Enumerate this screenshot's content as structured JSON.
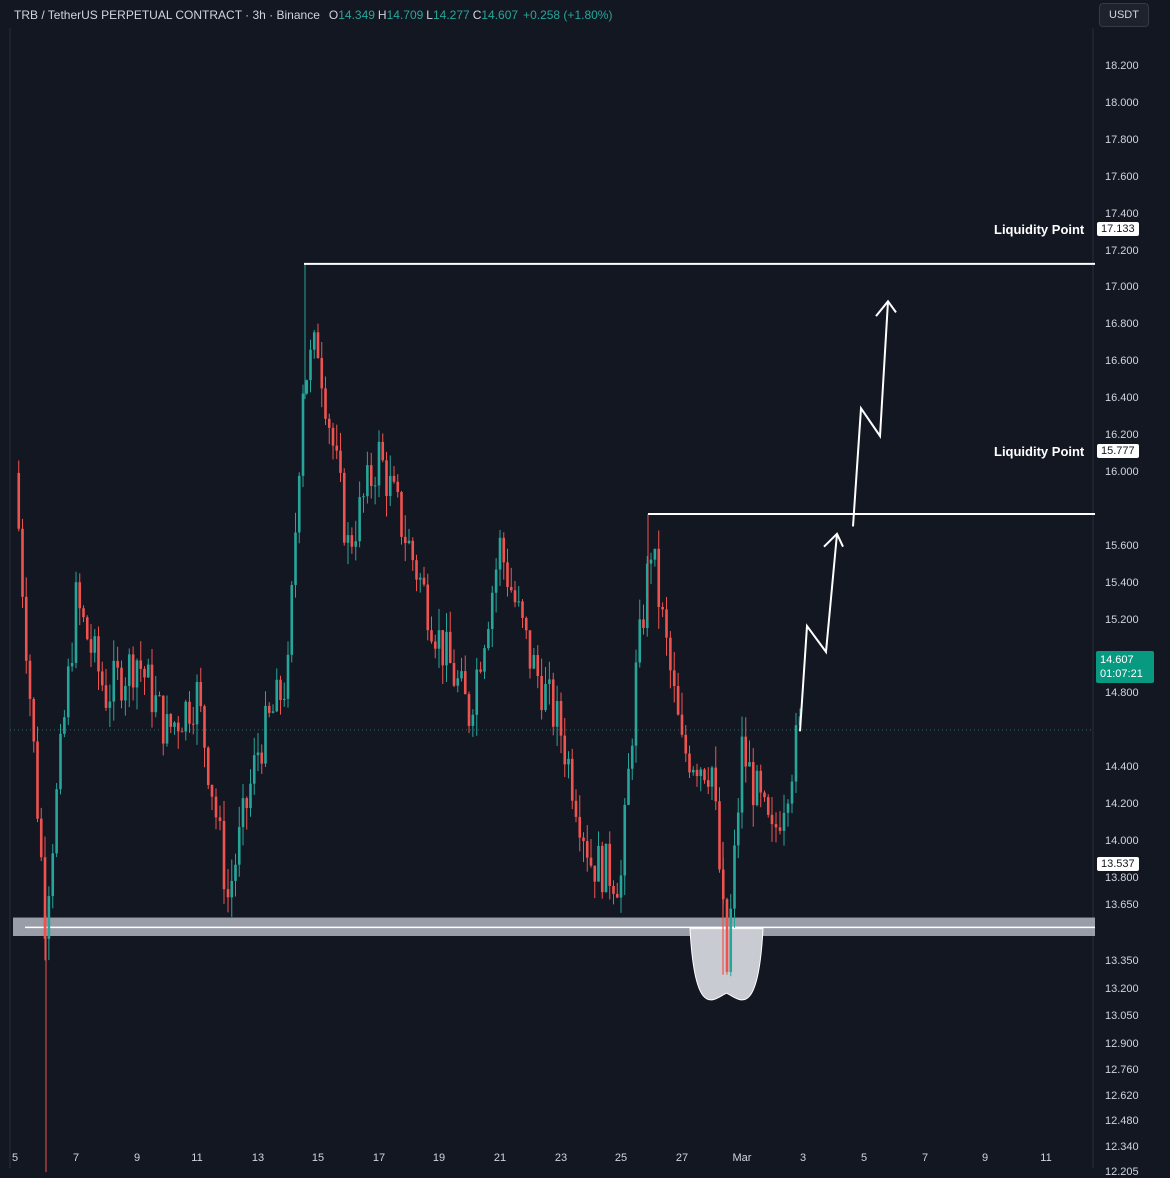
{
  "header": {
    "symbol": "TRB / TetherUS PERPETUAL CONTRACT · 3h · Binance",
    "o_label": "O",
    "o_value": "14.349",
    "h_label": "H",
    "h_value": "14.709",
    "l_label": "L",
    "l_value": "14.277",
    "c_label": "C",
    "c_value": "14.607",
    "change": "+0.258 (+1.80%)"
  },
  "currency_button": "USDT",
  "price_axis": [
    "18.200",
    "18.000",
    "17.800",
    "17.600",
    "17.400",
    "17.200",
    "17.000",
    "16.800",
    "16.600",
    "16.400",
    "16.200",
    "16.000",
    "15.600",
    "15.400",
    "15.200",
    "15.000",
    "14.800",
    "14.400",
    "14.200",
    "14.000",
    "13.800",
    "13.650",
    "13.350",
    "13.200",
    "13.050",
    "12.900",
    "12.760",
    "12.620",
    "12.480",
    "12.340",
    "12.205"
  ],
  "date_axis": [
    "5",
    "7",
    "9",
    "11",
    "13",
    "15",
    "17",
    "19",
    "21",
    "23",
    "25",
    "27",
    "Mar",
    "3",
    "5",
    "7",
    "9",
    "11"
  ],
  "annotations": {
    "liquidity_upper_label": "Liquidity Point",
    "liquidity_upper_price": "17.133",
    "liquidity_lower_label": "Liquidity Point",
    "liquidity_lower_price": "15.777",
    "support_price": "13.537"
  },
  "last_price": {
    "price": "14.607",
    "countdown": "01:07:21"
  },
  "colors": {
    "background": "#131722",
    "up": "#26a69a",
    "down": "#ef5350",
    "annotation": "#ffffff",
    "support_zone": "#b2b5be"
  },
  "chart_data": {
    "type": "candlestick",
    "title": "TRB / TetherUS PERPETUAL CONTRACT · 3h · Binance",
    "x_ticks": [
      "5",
      "7",
      "9",
      "11",
      "13",
      "15",
      "17",
      "19",
      "21",
      "23",
      "25",
      "27",
      "Mar",
      "3",
      "5",
      "7",
      "9",
      "11"
    ],
    "y_range": [
      12.205,
      18.35
    ],
    "close_path": [
      [
        "5",
        16.0
      ],
      [
        "6",
        13.6
      ],
      [
        "7",
        15.3
      ],
      [
        "8",
        14.8
      ],
      [
        "9",
        15.0
      ],
      [
        "10",
        14.6
      ],
      [
        "11",
        14.8
      ],
      [
        "11.5",
        14.3
      ],
      [
        "12",
        13.7
      ],
      [
        "13",
        14.5
      ],
      [
        "14",
        14.9
      ],
      [
        "14.5",
        16.5
      ],
      [
        "15",
        16.7
      ],
      [
        "16",
        15.6
      ],
      [
        "17",
        16.1
      ],
      [
        "18",
        15.6
      ],
      [
        "19",
        15.1
      ],
      [
        "20",
        14.7
      ],
      [
        "21",
        15.6
      ],
      [
        "22",
        15.0
      ],
      [
        "23",
        14.6
      ],
      [
        "24",
        13.9
      ],
      [
        "25",
        13.8
      ],
      [
        "25.5",
        14.9
      ],
      [
        "26",
        15.6
      ],
      [
        "27",
        14.5
      ],
      [
        "28",
        14.4
      ],
      [
        "29",
        13.3
      ],
      [
        "Mar",
        14.5
      ],
      [
        "2",
        14.0
      ],
      [
        "3",
        14.607
      ]
    ],
    "key_levels": [
      {
        "label": "Liquidity Point",
        "value": 17.133
      },
      {
        "label": "Liquidity Point",
        "value": 15.777
      },
      {
        "value": 13.537
      }
    ],
    "last_price": 14.607
  }
}
